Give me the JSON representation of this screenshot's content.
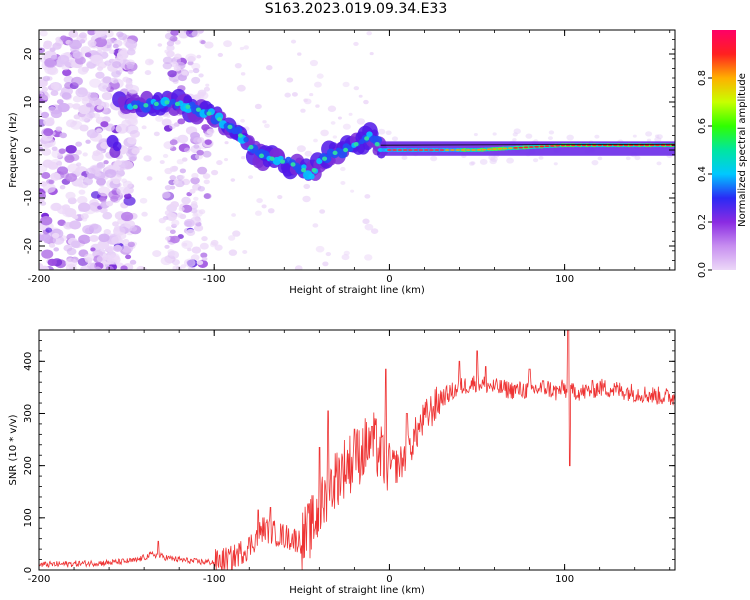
{
  "title": "S163.2023.019.09.34.E33",
  "chart_data": [
    {
      "type": "heatmap",
      "xlabel": "Height of straight line (km)",
      "ylabel": "Frequency (Hz)",
      "xlim": [
        -200,
        163
      ],
      "ylim": [
        -25,
        25
      ],
      "xticks": [
        -200,
        -100,
        0,
        100
      ],
      "yticks": [
        -20,
        -10,
        0,
        10,
        20
      ],
      "colorbar": {
        "label": "Normalized spectral amplitude",
        "range": [
          0,
          1
        ],
        "ticks": [
          0.0,
          0.2,
          0.4,
          0.6,
          0.8
        ],
        "colormap": [
          "#ecd8f8",
          "#c78ef0",
          "#8a2be2",
          "#2a2af5",
          "#00c8ff",
          "#00e6a0",
          "#30ff00",
          "#c8ff00",
          "#ffb000",
          "#ff2020",
          "#ff0066"
        ]
      },
      "ridge": {
        "x": [
          -155,
          -145,
          -135,
          -125,
          -115,
          -105,
          -95,
          -85,
          -75,
          -65,
          -55,
          -45,
          -35,
          -25,
          -15,
          -10,
          -5,
          0,
          25,
          50,
          75,
          100,
          130,
          163
        ],
        "y": [
          10,
          9,
          9.5,
          10,
          9,
          8,
          6,
          3,
          -1,
          -2,
          -3,
          -5,
          -1,
          0,
          2,
          3,
          0,
          0,
          0,
          0,
          0.5,
          1,
          1,
          1
        ]
      },
      "grid": false
    },
    {
      "type": "line",
      "xlabel": "Height of straight line (km)",
      "ylabel": "SNR (10 * v/v)",
      "xlim": [
        -200,
        163
      ],
      "ylim": [
        0,
        460
      ],
      "xticks": [
        -200,
        -100,
        0,
        100
      ],
      "yticks": [
        0,
        100,
        200,
        300,
        400
      ],
      "series": [
        {
          "color": "#ee3333",
          "x": [
            -200,
            -180,
            -160,
            -145,
            -135,
            -125,
            -110,
            -100,
            -90,
            -80,
            -72,
            -65,
            -55,
            -50,
            -45,
            -40,
            -35,
            -30,
            -25,
            -20,
            -15,
            -10,
            -5,
            0,
            5,
            10,
            15,
            20,
            25,
            30,
            40,
            50,
            60,
            70,
            80,
            90,
            95,
            100,
            102,
            105,
            110,
            120,
            130,
            140,
            150,
            163
          ],
          "y": [
            10,
            12,
            14,
            18,
            30,
            22,
            16,
            15,
            22,
            45,
            80,
            70,
            60,
            55,
            80,
            110,
            150,
            180,
            200,
            210,
            230,
            250,
            220,
            200,
            200,
            220,
            260,
            290,
            310,
            330,
            350,
            360,
            350,
            345,
            345,
            350,
            340,
            350,
            330,
            345,
            340,
            350,
            345,
            340,
            335,
            330
          ]
        }
      ],
      "spikes": [
        {
          "x": -132,
          "y": 55
        },
        {
          "x": -75,
          "y": 115
        },
        {
          "x": -68,
          "y": 120
        },
        {
          "x": -40,
          "y": 235
        },
        {
          "x": -35,
          "y": 305
        },
        {
          "x": -20,
          "y": 270
        },
        {
          "x": -10,
          "y": 275
        },
        {
          "x": -2,
          "y": 385
        },
        {
          "x": 10,
          "y": 300
        },
        {
          "x": 40,
          "y": 400
        },
        {
          "x": 50,
          "y": 420
        },
        {
          "x": 55,
          "y": 390
        },
        {
          "x": 80,
          "y": 385
        },
        {
          "x": 102,
          "y": 460
        },
        {
          "x": 103,
          "y": 200
        }
      ],
      "grid": false
    }
  ]
}
